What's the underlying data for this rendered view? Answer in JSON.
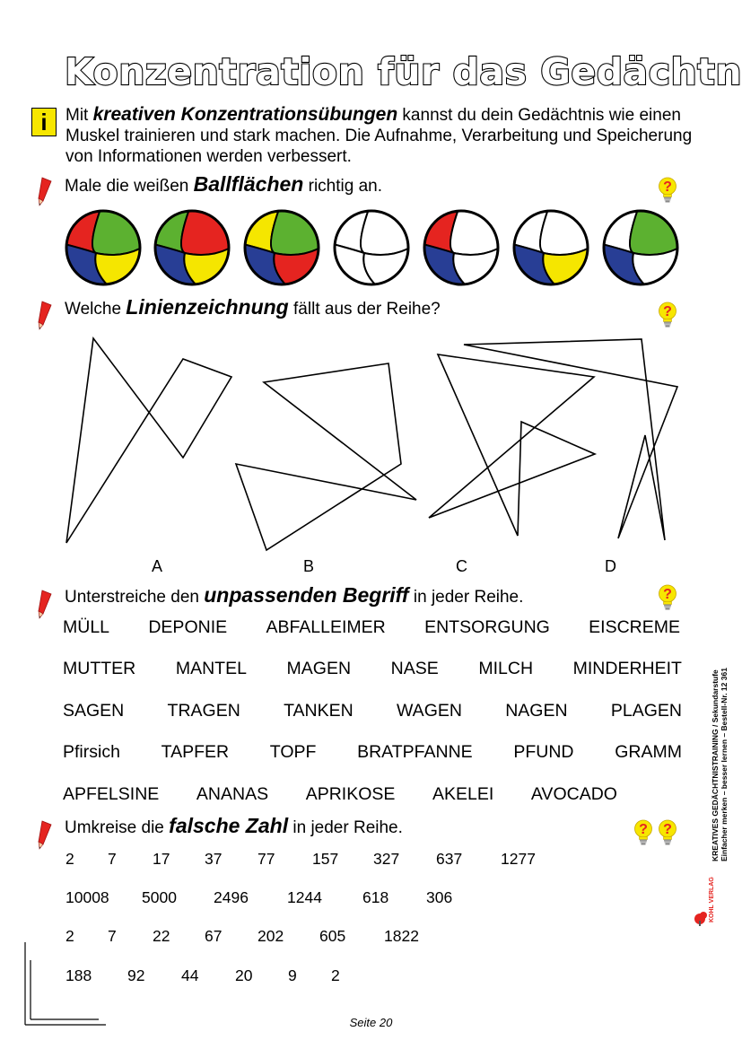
{
  "title": "Konzentration für das Gedächtnis",
  "info_badge": "i",
  "intro": {
    "before": "Mit ",
    "bold": "kreativen Konzentrationsübungen",
    "after": " kannst du dein Gedächtnis wie einen Muskel trainieren und stark machen. Die Aufnahme, Verarbeitung und Speicherung von Informationen werden verbessert."
  },
  "task1": {
    "before": "Male die weißen ",
    "bold": "Ballflächen",
    "after": " richtig an."
  },
  "task2": {
    "before": "Welche ",
    "bold": "Linienzeichnung",
    "after": " fällt aus der Reihe?"
  },
  "task3": {
    "before": "Unterstreiche den ",
    "bold": "unpassenden Begriff",
    "after": " in jeder Reihe."
  },
  "task4": {
    "before": "Umkreise die ",
    "bold": "falsche Zahl",
    "after": " in jeder Reihe."
  },
  "hint_symbol": "?",
  "colors": {
    "red": "#e52420",
    "green": "#5cb130",
    "yellow": "#f5e600",
    "blue": "#283e95",
    "white": "#ffffff"
  },
  "balls": [
    {
      "tl": "red",
      "tr": "green",
      "bl": "blue",
      "br": "yellow"
    },
    {
      "tl": "green",
      "tr": "red",
      "bl": "blue",
      "br": "yellow"
    },
    {
      "tl": "yellow",
      "tr": "green",
      "bl": "blue",
      "br": "red"
    },
    {
      "tl": "white",
      "tr": "white",
      "bl": "white",
      "br": "white"
    },
    {
      "tl": "red",
      "tr": "white",
      "bl": "blue",
      "br": "white"
    },
    {
      "tl": "white",
      "tr": "white",
      "bl": "blue",
      "br": "yellow"
    },
    {
      "tl": "white",
      "tr": "green",
      "bl": "blue",
      "br": "white"
    }
  ],
  "drawing_letters": [
    "A",
    "B",
    "C",
    "D"
  ],
  "word_rows": [
    [
      "MÜLL",
      "DEPONIE",
      "ABFALLEIMER",
      "ENTSORGUNG",
      "EISCREME"
    ],
    [
      "MUTTER",
      "MANTEL",
      "MAGEN",
      "NASE",
      "MILCH",
      "MINDERHEIT"
    ],
    [
      "SAGEN",
      "TRAGEN",
      "TANKEN",
      "WAGEN",
      "NAGEN",
      "PLAGEN"
    ],
    [
      "Pfirsich",
      "TAPFER",
      "TOPF",
      "BRATPFANNE",
      "PFUND",
      "GRAMM"
    ],
    [
      "APFELSINE",
      "ANANAS",
      "APRIKOSE",
      "AKELEI",
      "AVOCADO"
    ]
  ],
  "number_rows": [
    [
      "2",
      "7",
      "17",
      "37",
      "77",
      "157",
      "327",
      "637",
      "1277"
    ],
    [
      "10008",
      "5000",
      "2496",
      "1244",
      "618",
      "306"
    ],
    [
      "2",
      "7",
      "22",
      "67",
      "202",
      "605",
      "1822"
    ],
    [
      "188",
      "92",
      "44",
      "20",
      "9",
      "2"
    ]
  ],
  "side": {
    "line1": "KREATIVES GEDÄCHTNISTRAINING  /  Sekundarstufe",
    "line2": "Einfacher merken – besser lernen   –   Bestell-Nr. 12 361",
    "publisher": "KOHL VERLAG"
  },
  "footer": "Seite 20"
}
